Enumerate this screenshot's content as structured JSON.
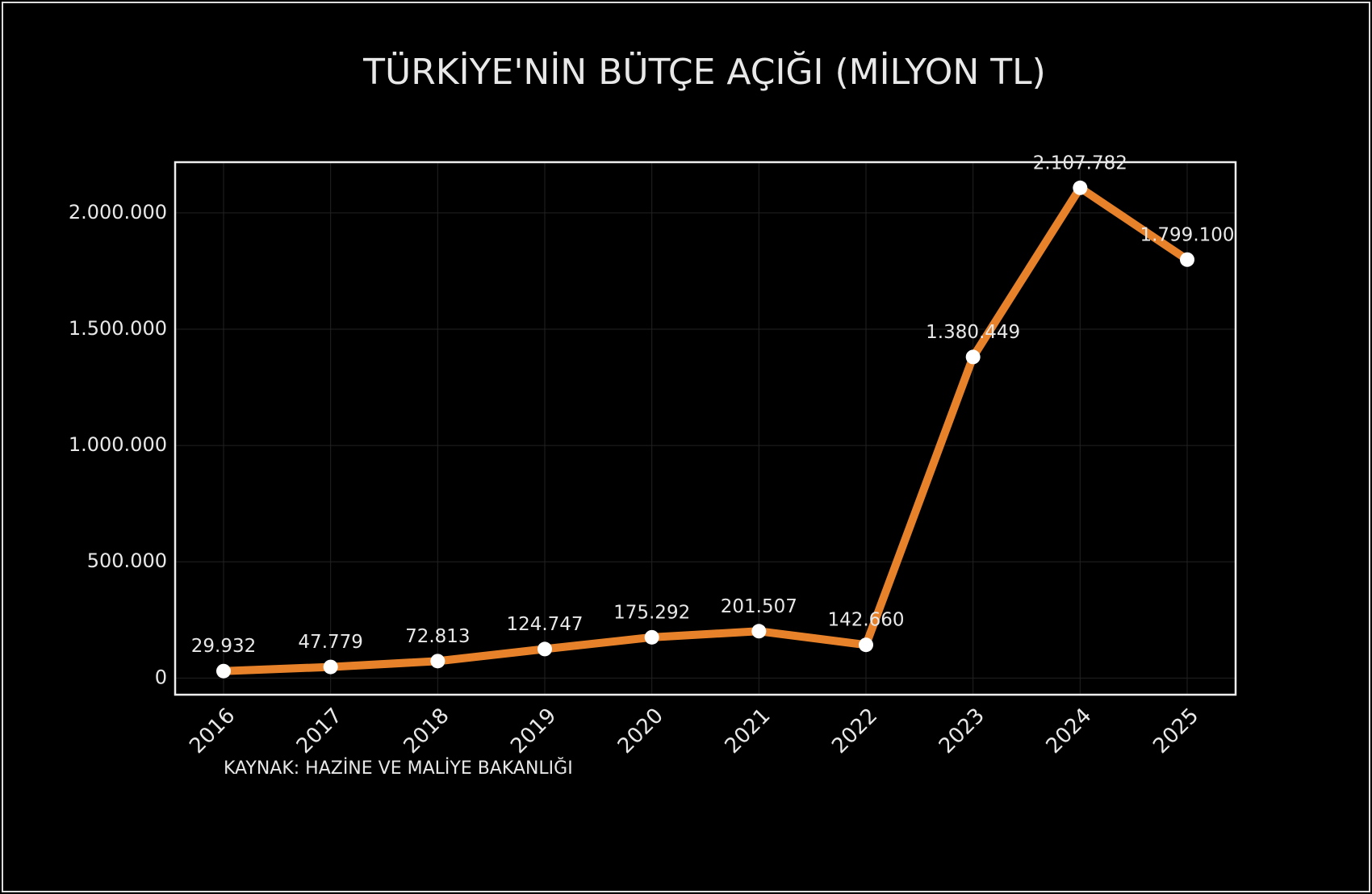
{
  "chart_data": {
    "type": "line",
    "title": "TÜRKİYE'NİN BÜTÇE AÇIĞI (MİLYON TL)",
    "source": "KAYNAK: HAZİNE VE MALİYE BAKANLIĞI",
    "categories": [
      "2016",
      "2017",
      "2018",
      "2019",
      "2020",
      "2021",
      "2022",
      "2023",
      "2024",
      "2025"
    ],
    "values": [
      29932,
      47779,
      72813,
      124747,
      175292,
      201507,
      142660,
      1380449,
      2107782,
      1799100
    ],
    "value_labels": [
      "29.932",
      "47.779",
      "72.813",
      "124.747",
      "175.292",
      "201.507",
      "142.660",
      "1.380.449",
      "2.107.782",
      "1.799.100"
    ],
    "color": "#e8822a",
    "ylim": [
      -71600,
      2218000
    ],
    "yticks": [
      0,
      {
        "value": 500000,
        "label": "500.000"
      },
      {
        "value": 1000000,
        "label": "1.000.000"
      },
      {
        "value": 1500000,
        "label": "1.500.000"
      },
      {
        "value": 2000000,
        "label": "2.000.000"
      }
    ],
    "grid": true
  }
}
